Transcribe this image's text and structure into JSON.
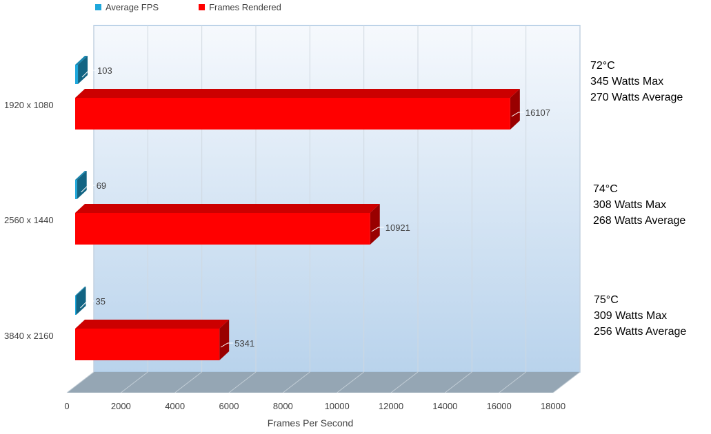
{
  "chart_data": {
    "type": "bar",
    "orientation": "horizontal",
    "title": "",
    "xlabel": "Frames Per Second",
    "ylabel": "",
    "xlim": [
      0,
      18000
    ],
    "xticks": [
      0,
      2000,
      4000,
      6000,
      8000,
      10000,
      12000,
      14000,
      16000,
      18000
    ],
    "grid": true,
    "legend_position": "top-left",
    "categories": [
      "1920 x 1080",
      "2560 x 1440",
      "3840 x 2160"
    ],
    "series": [
      {
        "name": "Average FPS",
        "color": "#1ea7db",
        "values": [
          103,
          69,
          35
        ]
      },
      {
        "name": "Frames Rendered",
        "color": "#ff0000",
        "values": [
          16107,
          10921,
          5341
        ]
      }
    ],
    "annotations": [
      {
        "category": "1920 x 1080",
        "lines": [
          "72°C",
          "345 Watts Max",
          "270 Watts Average"
        ]
      },
      {
        "category": "2560 x 1440",
        "lines": [
          "74°C",
          "308 Watts Max",
          "268 Watts Average"
        ]
      },
      {
        "category": "3840 x 2160",
        "lines": [
          "75°C",
          "309 Watts Max",
          "256 Watts Average"
        ]
      }
    ]
  }
}
